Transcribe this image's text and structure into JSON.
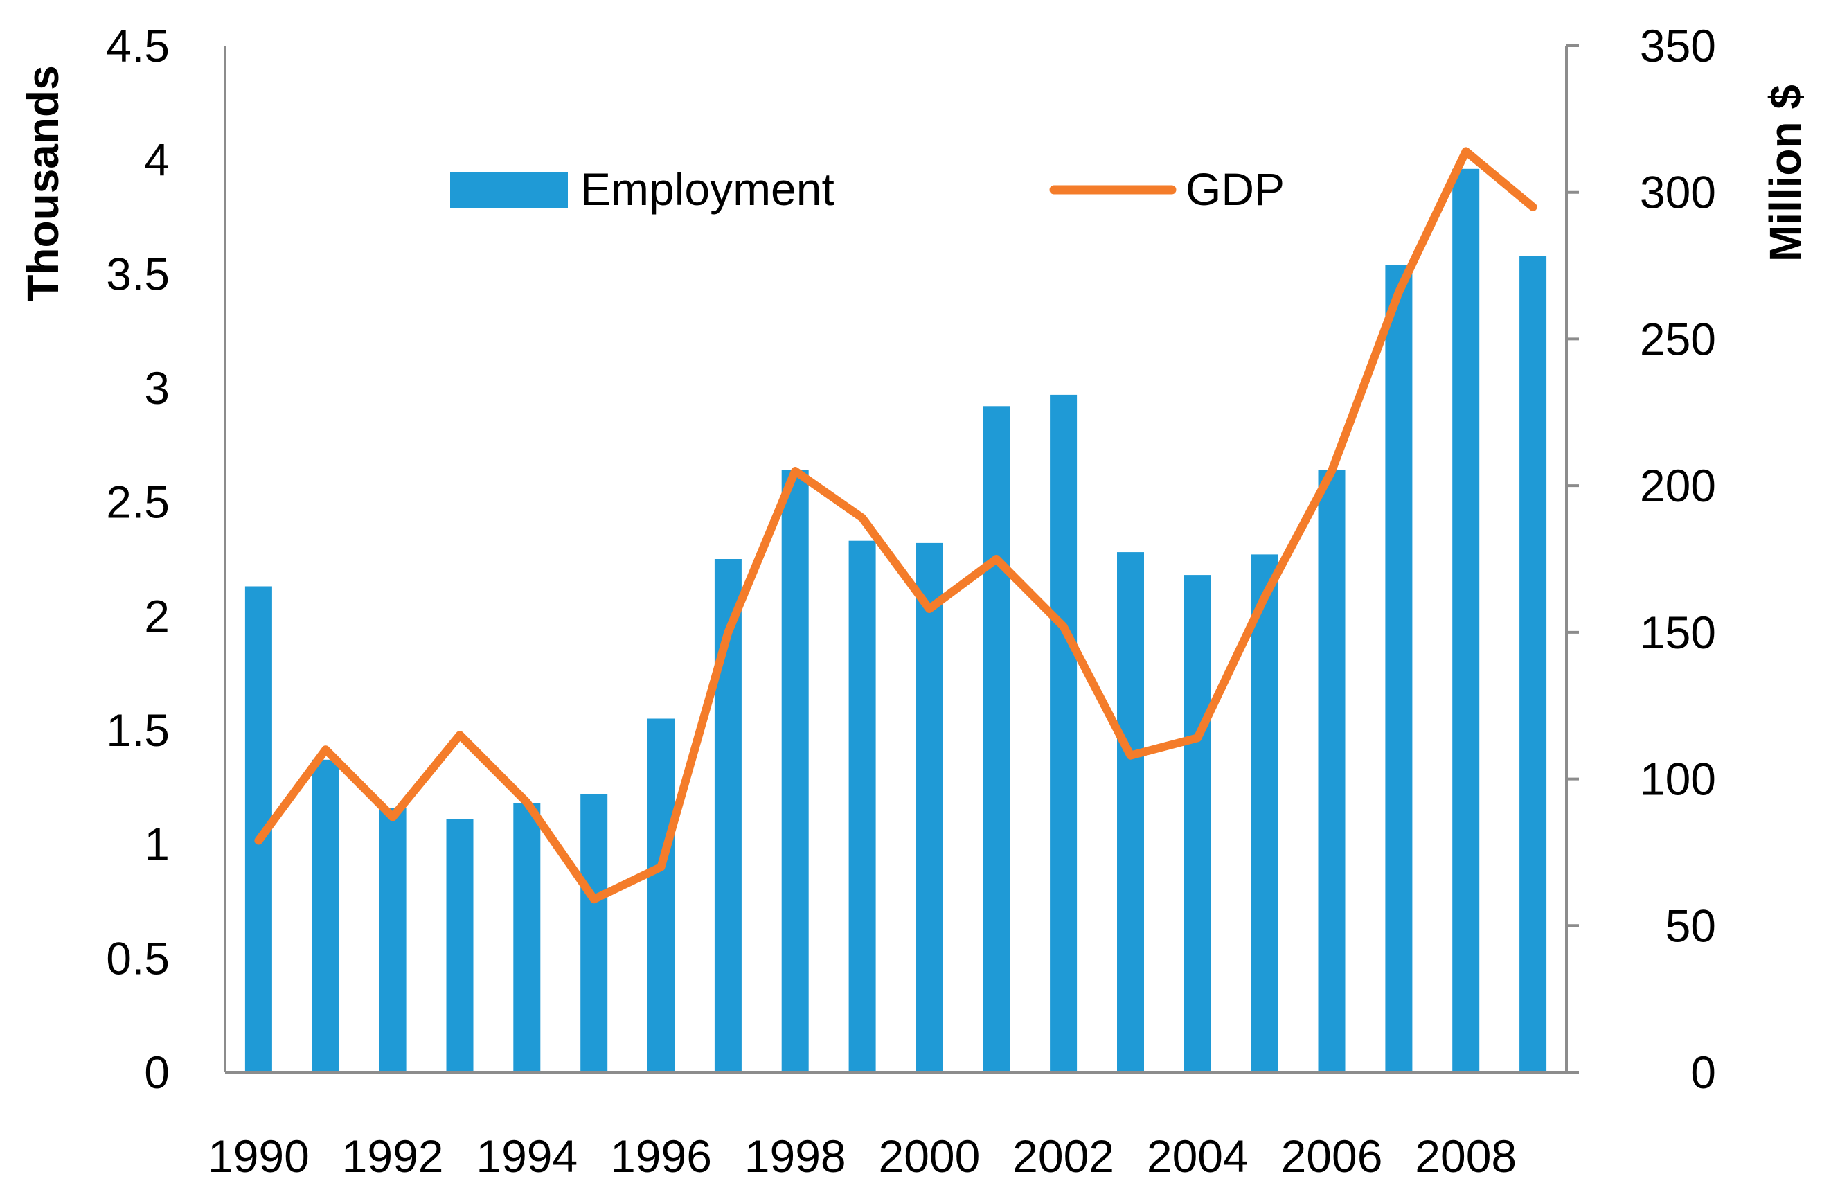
{
  "chart_data": {
    "type": "bar+line",
    "title": "",
    "categories": [
      "1990",
      "1991",
      "1992",
      "1993",
      "1994",
      "1995",
      "1996",
      "1997",
      "1998",
      "1999",
      "2000",
      "2001",
      "2002",
      "2003",
      "2004",
      "2005",
      "2006",
      "2007",
      "2008",
      "2009"
    ],
    "x_tick_labels": [
      "1990",
      "1992",
      "1994",
      "1996",
      "1998",
      "2000",
      "2002",
      "2004",
      "2006",
      "2008"
    ],
    "series": [
      {
        "name": "Employment",
        "kind": "bar",
        "axis": "left",
        "color": "#1f9ad6",
        "values": [
          2.13,
          1.37,
          1.16,
          1.11,
          1.18,
          1.22,
          1.55,
          2.25,
          2.64,
          2.33,
          2.32,
          2.92,
          2.97,
          2.28,
          2.18,
          2.27,
          2.64,
          3.54,
          3.96,
          3.58
        ]
      },
      {
        "name": "GDP",
        "kind": "line",
        "axis": "right",
        "color": "#f47c2a",
        "values": [
          79,
          110,
          87,
          115,
          92,
          59,
          70,
          150,
          205,
          189,
          158,
          175,
          152,
          108,
          114,
          162,
          205,
          266,
          314,
          295
        ]
      }
    ],
    "left_axis": {
      "label": "Thousands",
      "ylim": [
        0,
        4.5
      ],
      "ticks": [
        "0",
        "0.5",
        "1",
        "1.5",
        "2",
        "2.5",
        "3",
        "3.5",
        "4",
        "4.5"
      ]
    },
    "right_axis": {
      "label": "Million $",
      "ylim": [
        0,
        350
      ],
      "ticks": [
        "0",
        "50",
        "100",
        "150",
        "200",
        "250",
        "300",
        "350"
      ]
    },
    "legend_position": "top-center",
    "grid": false
  }
}
